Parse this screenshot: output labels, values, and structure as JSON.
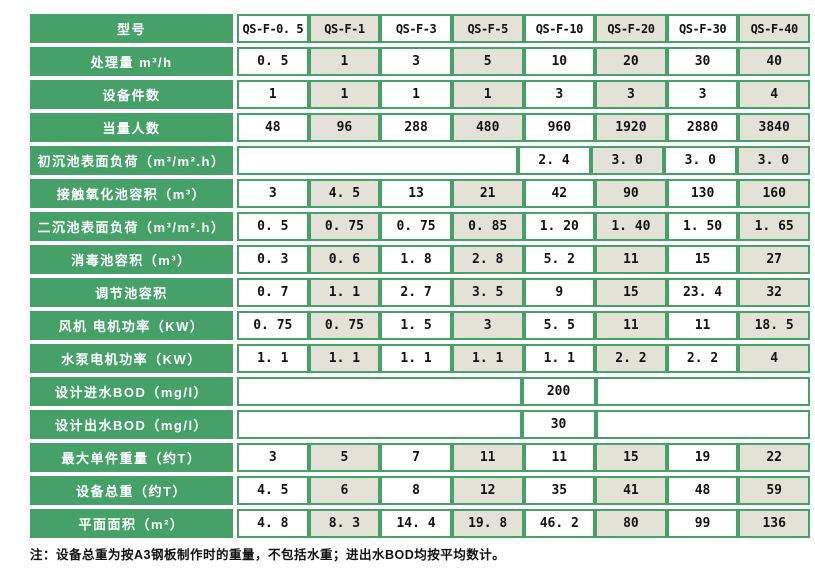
{
  "colors": {
    "green": "#46a169",
    "beige": "#e4e2d7",
    "row_gap": "#eaf4ec"
  },
  "table": {
    "header": {
      "label": "型号",
      "models": [
        "QS-F-0. 5",
        "QS-F-1",
        "QS-F-3",
        "QS-F-5",
        "QS-F-10",
        "QS-F-20",
        "QS-F-30",
        "QS-F-40"
      ]
    },
    "rows": [
      {
        "label": "处理量 m³/h",
        "cells": [
          "0. 5",
          "1",
          "3",
          "5",
          "10",
          "20",
          "30",
          "40"
        ]
      },
      {
        "label": "设备件数",
        "cells": [
          "1",
          "1",
          "1",
          "1",
          "3",
          "3",
          "3",
          "4"
        ]
      },
      {
        "label": "当量人数",
        "cells": [
          "48",
          "96",
          "288",
          "480",
          "960",
          "1920",
          "2880",
          "3840"
        ]
      },
      {
        "label": "初沉池表面负荷（m³/m².h）",
        "cells": [
          "",
          "2. 4",
          "3. 0",
          "3. 0",
          "3. 0"
        ],
        "spans": [
          4,
          1,
          1,
          1,
          1
        ]
      },
      {
        "label": "接触氧化池容积（m³）",
        "cells": [
          "3",
          "4. 5",
          "13",
          "21",
          "42",
          "90",
          "130",
          "160"
        ]
      },
      {
        "label": "二沉池表面负荷（m³/m².h）",
        "cells": [
          "0. 5",
          "0. 75",
          "0. 75",
          "0. 85",
          "1. 20",
          "1. 40",
          "1. 50",
          "1. 65"
        ]
      },
      {
        "label": "消毒池容积（m³）",
        "cells": [
          "0. 3",
          "0. 6",
          "1. 8",
          "2. 8",
          "5. 2",
          "11",
          "15",
          "27"
        ]
      },
      {
        "label": "调节池容积",
        "cells": [
          "0. 7",
          "1. 1",
          "2. 7",
          "3. 5",
          "9",
          "15",
          "23. 4",
          "32"
        ]
      },
      {
        "label": "风机 电机功率（KW）",
        "cells": [
          "0. 75",
          "0. 75",
          "1. 5",
          "3",
          "5. 5",
          "11",
          "11",
          "18. 5"
        ]
      },
      {
        "label": "水泵电机功率（KW）",
        "cells": [
          "1. 1",
          "1. 1",
          "1. 1",
          "1. 1",
          "1. 1",
          "2. 2",
          "2. 2",
          "4"
        ]
      },
      {
        "label": "设计进水BOD（mg/l）",
        "cells": [
          "",
          "200",
          ""
        ],
        "spans": [
          4,
          1,
          3
        ]
      },
      {
        "label": "设计出水BOD（mg/l）",
        "cells": [
          "",
          "30",
          ""
        ],
        "spans": [
          4,
          1,
          3
        ]
      },
      {
        "label": "最大单件重量（约T）",
        "cells": [
          "3",
          "5",
          "7",
          "11",
          "11",
          "15",
          "19",
          "22"
        ]
      },
      {
        "label": "设备总重（约T）",
        "cells": [
          "4. 5",
          "6",
          "8",
          "12",
          "35",
          "41",
          "48",
          "59"
        ]
      },
      {
        "label": "平面面积（m²）",
        "cells": [
          "4. 8",
          "8. 3",
          "14. 4",
          "19. 8",
          "46. 2",
          "80",
          "99",
          "136"
        ]
      }
    ]
  },
  "note": "注：设备总重为按A3钢板制作时的重量，不包括水重；进出水BOD均按平均数计。"
}
